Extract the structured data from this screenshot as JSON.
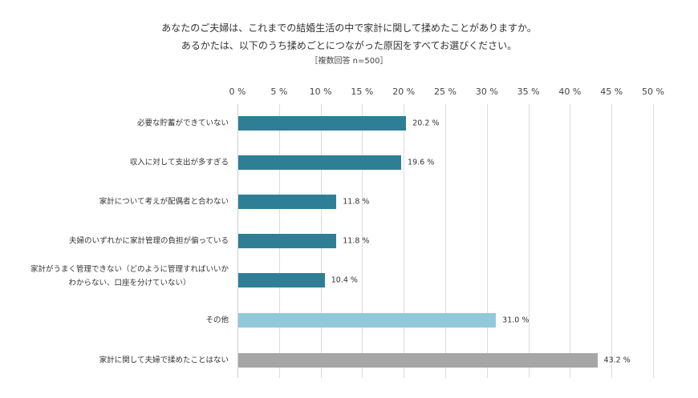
{
  "chart_data": {
    "type": "bar",
    "orientation": "horizontal",
    "title": "あなたのご夫婦は、これまでの結婚生活の中で家計に関して揉めたことがありますか。",
    "subtitle": "あるかたは、以下のうち揉めごとにつながった原因をすべてお選びください。",
    "note": "［複数回答 n=500］",
    "xlabel": "",
    "ylabel": "",
    "xlim": [
      0,
      50
    ],
    "grid": true,
    "tick_labels": [
      "0 %",
      "5 %",
      "10 %",
      "15 %",
      "20 %",
      "25 %",
      "30 %",
      "35 %",
      "40 %",
      "45 %",
      "50 %"
    ],
    "categories": [
      "必要な貯蓄ができていない",
      "収入に対して支出が多すぎる",
      "家計について考えが配偶者と合わない",
      "夫婦のいずれかに家計管理の負担が偏っている",
      "家計がうまく管理できない（どのように管理すればいいかわからない、口座を分けていない）",
      "その他",
      "家計に関して夫婦で揉めたことはない"
    ],
    "values": [
      20.2,
      19.6,
      11.8,
      11.8,
      10.4,
      31.0,
      43.2
    ],
    "value_labels": [
      "20.2 %",
      "19.6 %",
      "11.8 %",
      "11.8 %",
      "10.4 %",
      "31.0 %",
      "43.2 %"
    ],
    "colors": [
      "#2e7f96",
      "#2e7f96",
      "#2e7f96",
      "#2e7f96",
      "#2e7f96",
      "#92c9da",
      "#a6a6a6"
    ]
  },
  "labels": {
    "row4_line1": "家計がうまく管理できない（どのように管理すればいいか",
    "row4_line2": "わからない、口座を分けていない）"
  }
}
